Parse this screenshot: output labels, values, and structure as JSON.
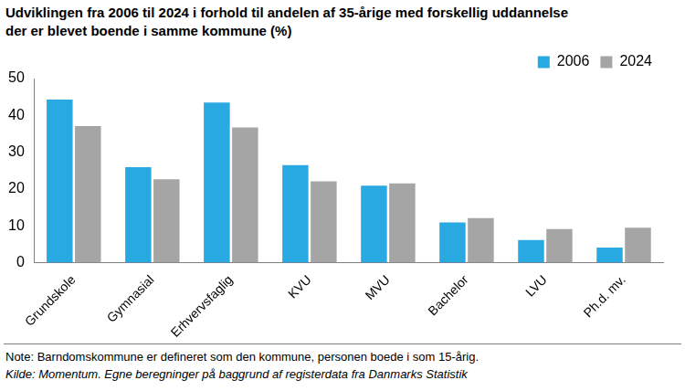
{
  "chart_data": {
    "type": "bar",
    "title": [
      "Udviklingen fra 2006 til 2024 i forhold til andelen af 35-årige med forskellig uddannelse",
      "der er blevet boende i samme kommune (%)"
    ],
    "categories": [
      "Grundskole",
      "Gymnasial",
      "Erhvervsfaglig",
      "KVU",
      "MVU",
      "Bachelor",
      "LVU",
      "Ph.d. mv."
    ],
    "series": [
      {
        "name": "2006",
        "color": "#29a9e1",
        "values": [
          44.3,
          25.9,
          43.5,
          26.5,
          20.9,
          10.9,
          6.1,
          4.1
        ]
      },
      {
        "name": "2024",
        "color": "#a5a5a5",
        "values": [
          37.1,
          22.6,
          36.7,
          22.1,
          21.5,
          12.1,
          9.1,
          9.5
        ]
      }
    ],
    "ylim": [
      0,
      50
    ],
    "yticks": [
      0,
      10,
      20,
      30,
      40,
      50
    ],
    "grid": false,
    "legend": "upper right",
    "note": "Note: Barndomskommune er defineret som den kommune, personen boede i som 15-årig.",
    "source": "Kilde: Momentum. Egne beregninger på baggrund af registerdata fra Danmarks Statistik"
  }
}
